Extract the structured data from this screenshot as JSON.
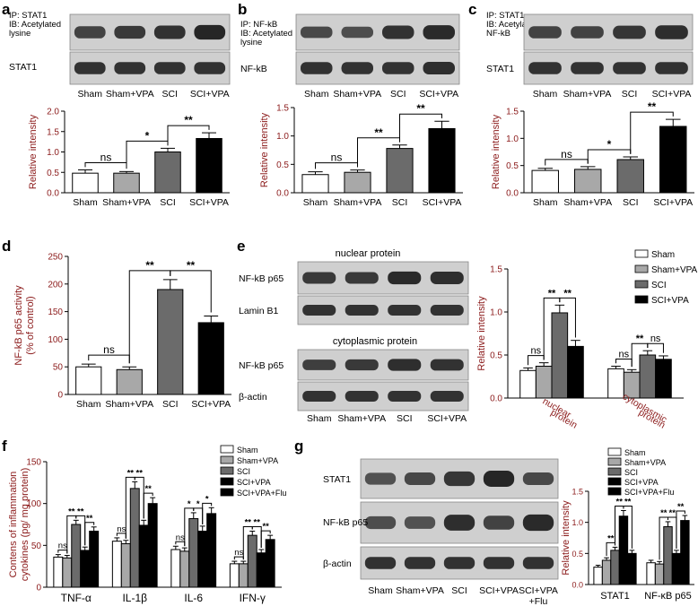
{
  "colors": {
    "sham": "#ffffff",
    "sham_vpa": "#a8a8a8",
    "sci": "#6b6b6b",
    "sci_vpa": "#000000",
    "sci_vpa_flu": "#000000",
    "flu_fill": "#000000",
    "axis_label": "#8b1a1a",
    "blot_bg": "#cfcfcf",
    "band": "#222222"
  },
  "panels": {
    "a": {
      "letter": "a",
      "blot_labels": {
        "top": [
          "IP: STAT1",
          "IB: Acetylated",
          "lysine"
        ],
        "bottom": "STAT1"
      },
      "lane_labels": [
        "Sham",
        "Sham+VPA",
        "SCI",
        "SCI+VPA"
      ]
    },
    "b": {
      "letter": "b",
      "blot_labels": {
        "top": [
          "IP:  NF-kB",
          "IB: Acetylated",
          "lysine"
        ],
        "bottom": "NF-kB"
      },
      "lane_labels": [
        "Sham",
        "Sham+VPA",
        "SCI",
        "SCI+VPA"
      ]
    },
    "c": {
      "letter": "c",
      "blot_labels": {
        "top": [
          "IP:  STAT1",
          "IB: Acetylated",
          "NF-kB"
        ],
        "bottom": "STAT1"
      },
      "lane_labels": [
        "Sham",
        "Sham+VPA",
        "SCI",
        "SCI+VPA"
      ]
    },
    "d": {
      "letter": "d"
    },
    "e": {
      "letter": "e",
      "blot_titles": [
        "nuclear protein",
        "cytoplasmic protein"
      ],
      "blot_labels": [
        "NF-kB p65",
        "Lamin B1",
        "NF-kB p65",
        "β-actin"
      ],
      "lane_labels": [
        "Sham",
        "Sham+VPA",
        "SCI",
        "SCI+VPA"
      ],
      "legend": [
        "Sham",
        "Sham+VPA",
        "SCI",
        "SCI+VPA"
      ]
    },
    "f": {
      "letter": "f",
      "legend": [
        "Sham",
        "Sham+VPA",
        "SCI",
        "SCI+VPA",
        "SCI+VPA+Flu"
      ]
    },
    "g": {
      "letter": "g",
      "blot_labels": [
        "STAT1",
        "NF-kB p65",
        "β-actin"
      ],
      "lane_labels": [
        [
          "Sham"
        ],
        [
          "Sham+VPA"
        ],
        [
          "SCI"
        ],
        [
          "SCI+VPA"
        ],
        [
          "SCI+VPA",
          "+Flu"
        ]
      ],
      "legend": [
        "Sham",
        "Sham+VPA",
        "SCI",
        "SCI+VPA",
        "SCI+VPA+Flu"
      ]
    }
  },
  "chart_data": [
    {
      "id": "a",
      "type": "bar",
      "categories": [
        "Sham",
        "Sham+VPA",
        "SCI",
        "SCI+VPA"
      ],
      "values": [
        0.48,
        0.48,
        1.0,
        1.33
      ],
      "errors": [
        0.08,
        0.04,
        0.09,
        0.14
      ],
      "ylabel": "Relative intensity",
      "ylim": [
        0,
        2.0
      ],
      "yticks": [
        "0.0",
        "0.5",
        "1.0",
        "1.5",
        "2.0"
      ],
      "sig": [
        {
          "from": 0,
          "to": 1,
          "label": "ns"
        },
        {
          "from": 1,
          "to": 2,
          "label": "*"
        },
        {
          "from": 2,
          "to": 3,
          "label": "**"
        }
      ]
    },
    {
      "id": "b",
      "type": "bar",
      "categories": [
        "Sham",
        "Sham+VPA",
        "SCI",
        "SCI+VPA"
      ],
      "values": [
        0.32,
        0.36,
        0.78,
        1.13
      ],
      "errors": [
        0.05,
        0.04,
        0.06,
        0.13
      ],
      "ylabel": "Relative intensity",
      "ylim": [
        0,
        1.5
      ],
      "yticks": [
        "0.0",
        "0.5",
        "1.0",
        "1.5"
      ],
      "sig": [
        {
          "from": 0,
          "to": 1,
          "label": "ns"
        },
        {
          "from": 1,
          "to": 2,
          "label": "**"
        },
        {
          "from": 2,
          "to": 3,
          "label": "**"
        }
      ]
    },
    {
      "id": "c",
      "type": "bar",
      "categories": [
        "Sham",
        "Sham+VPA",
        "SCI",
        "SCI+VPA"
      ],
      "values": [
        0.41,
        0.43,
        0.61,
        1.22
      ],
      "errors": [
        0.04,
        0.05,
        0.05,
        0.13
      ],
      "ylabel": "Relative intensity",
      "ylim": [
        0,
        1.5
      ],
      "yticks": [
        "0.0",
        "0.5",
        "1.0",
        "1.5"
      ],
      "sig": [
        {
          "from": 0,
          "to": 1,
          "label": "ns"
        },
        {
          "from": 1,
          "to": 2,
          "label": "*"
        },
        {
          "from": 2,
          "to": 3,
          "label": "**"
        }
      ]
    },
    {
      "id": "d",
      "type": "bar",
      "categories": [
        "Sham",
        "Sham+VPA",
        "SCI",
        "SCI+VPA"
      ],
      "values": [
        50,
        45,
        190,
        130
      ],
      "errors": [
        5,
        5,
        18,
        12
      ],
      "ylabel": [
        "NF-kB p65 activity",
        "(% of control)"
      ],
      "ylim": [
        0,
        250
      ],
      "yticks": [
        "0",
        "50",
        "100",
        "150",
        "200",
        "250"
      ],
      "sig": [
        {
          "from": 0,
          "to": 1,
          "label": "ns"
        },
        {
          "from": 1,
          "to": 2,
          "label": "**"
        },
        {
          "from": 2,
          "to": 3,
          "label": "**"
        }
      ]
    },
    {
      "id": "e",
      "type": "bar",
      "groups": [
        "nuclear protein",
        "cytoplasmic protein"
      ],
      "group_labels": [
        [
          "nuclear",
          "protein"
        ],
        [
          "cytoplasmic",
          "protein"
        ]
      ],
      "series": [
        {
          "name": "Sham",
          "values": [
            0.32,
            0.34
          ],
          "errors": [
            0.03,
            0.03
          ]
        },
        {
          "name": "Sham+VPA",
          "values": [
            0.37,
            0.3
          ],
          "errors": [
            0.04,
            0.03
          ]
        },
        {
          "name": "SCI",
          "values": [
            0.99,
            0.5
          ],
          "errors": [
            0.09,
            0.05
          ]
        },
        {
          "name": "SCI+VPA",
          "values": [
            0.6,
            0.45
          ],
          "errors": [
            0.07,
            0.04
          ]
        }
      ],
      "ylabel": "Relative intensity",
      "ylim": [
        0,
        1.5
      ],
      "yticks": [
        "0.0",
        "0.5",
        "1.0",
        "1.5"
      ],
      "sig": [
        {
          "group": 0,
          "from": 0,
          "to": 1,
          "label": "ns"
        },
        {
          "group": 0,
          "from": 1,
          "to": 2,
          "label": "**"
        },
        {
          "group": 0,
          "from": 2,
          "to": 3,
          "label": "**"
        },
        {
          "group": 1,
          "from": 0,
          "to": 1,
          "label": "ns"
        },
        {
          "group": 1,
          "from": 1,
          "to": 2,
          "label": "**"
        },
        {
          "group": 1,
          "from": 2,
          "to": 3,
          "label": "ns"
        }
      ]
    },
    {
      "id": "f",
      "type": "bar",
      "groups": [
        "TNF-α",
        "IL-1β",
        "IL-6",
        "IFN-γ"
      ],
      "series": [
        {
          "name": "Sham",
          "values": [
            36,
            55,
            45,
            28
          ],
          "errors": [
            3,
            4,
            4,
            3
          ]
        },
        {
          "name": "Sham+VPA",
          "values": [
            35,
            52,
            43,
            28
          ],
          "errors": [
            3,
            4,
            4,
            3
          ]
        },
        {
          "name": "SCI",
          "values": [
            75,
            118,
            82,
            62
          ],
          "errors": [
            5,
            8,
            7,
            5
          ]
        },
        {
          "name": "SCI+VPA",
          "values": [
            44,
            74,
            67,
            41
          ],
          "errors": [
            4,
            6,
            6,
            4
          ]
        },
        {
          "name": "SCI+VPA+Flu",
          "values": [
            67,
            100,
            88,
            57
          ],
          "errors": [
            5,
            7,
            7,
            5
          ]
        }
      ],
      "ylabel": [
        "Contens of inflammation",
        "cytokines (pg/ mg protein)"
      ],
      "ylim": [
        0,
        150
      ],
      "yticks": [
        "0",
        "50",
        "100",
        "150"
      ],
      "sig": [
        {
          "group": 0,
          "from": 0,
          "to": 1,
          "label": "ns"
        },
        {
          "group": 0,
          "from": 1,
          "to": 2,
          "label": "**"
        },
        {
          "group": 0,
          "from": 2,
          "to": 3,
          "label": "**"
        },
        {
          "group": 0,
          "from": 3,
          "to": 4,
          "label": "**"
        },
        {
          "group": 1,
          "from": 0,
          "to": 1,
          "label": "ns"
        },
        {
          "group": 1,
          "from": 1,
          "to": 2,
          "label": "**"
        },
        {
          "group": 1,
          "from": 2,
          "to": 3,
          "label": "**"
        },
        {
          "group": 1,
          "from": 3,
          "to": 4,
          "label": "**"
        },
        {
          "group": 2,
          "from": 0,
          "to": 1,
          "label": "ns"
        },
        {
          "group": 2,
          "from": 1,
          "to": 2,
          "label": "*"
        },
        {
          "group": 2,
          "from": 2,
          "to": 3,
          "label": "*"
        },
        {
          "group": 2,
          "from": 3,
          "to": 4,
          "label": "*"
        },
        {
          "group": 3,
          "from": 0,
          "to": 1,
          "label": "ns"
        },
        {
          "group": 3,
          "from": 1,
          "to": 2,
          "label": "**"
        },
        {
          "group": 3,
          "from": 2,
          "to": 3,
          "label": "**"
        },
        {
          "group": 3,
          "from": 3,
          "to": 4,
          "label": "**"
        }
      ]
    },
    {
      "id": "g",
      "type": "bar",
      "groups": [
        "STAT1",
        "NF-κB p65"
      ],
      "series": [
        {
          "name": "Sham",
          "values": [
            0.28,
            0.35
          ],
          "errors": [
            0.03,
            0.04
          ]
        },
        {
          "name": "Sham+VPA",
          "values": [
            0.39,
            0.33
          ],
          "errors": [
            0.04,
            0.04
          ]
        },
        {
          "name": "SCI",
          "values": [
            0.55,
            0.93
          ],
          "errors": [
            0.05,
            0.08
          ]
        },
        {
          "name": "SCI+VPA",
          "values": [
            1.1,
            0.5
          ],
          "errors": [
            0.09,
            0.05
          ]
        },
        {
          "name": "SCI+VPA+Flu",
          "values": [
            0.5,
            1.03
          ],
          "errors": [
            0.05,
            0.08
          ]
        }
      ],
      "ylabel": "Relative intensity",
      "ylim": [
        0,
        1.5
      ],
      "yticks": [
        "0.0",
        "0.5",
        "1.0",
        "1.5"
      ],
      "sig": [
        {
          "group": 0,
          "from": 1,
          "to": 2,
          "label": "**"
        },
        {
          "group": 0,
          "from": 2,
          "to": 3,
          "label": "**"
        },
        {
          "group": 0,
          "from": 3,
          "to": 4,
          "label": "**"
        },
        {
          "group": 1,
          "from": 1,
          "to": 2,
          "label": "**"
        },
        {
          "group": 1,
          "from": 2,
          "to": 3,
          "label": "**"
        },
        {
          "group": 1,
          "from": 3,
          "to": 4,
          "label": "**"
        }
      ]
    }
  ]
}
